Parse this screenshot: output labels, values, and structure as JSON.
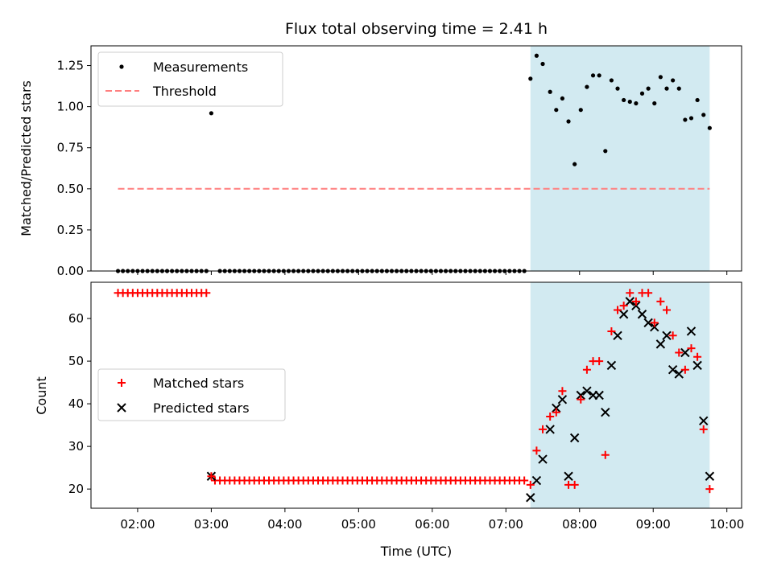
{
  "chart_data": [
    {
      "type": "scatter",
      "title": "Flux total observing time = 2.41 h",
      "xlabel": "",
      "ylabel": "Matched/Predicted stars",
      "xlim": [
        "01:22",
        "10:12"
      ],
      "ylim": [
        0,
        1.37
      ],
      "yticks": [
        0.0,
        0.25,
        0.5,
        0.75,
        1.0,
        1.25
      ],
      "ytick_labels": [
        "0.00",
        "0.25",
        "0.50",
        "0.75",
        "1.00",
        "1.25"
      ],
      "shaded_region": {
        "x_start": "07:20",
        "x_end": "09:46",
        "color": "#add8e6"
      },
      "legend": {
        "position": "top-left",
        "entries": [
          "Measurements",
          "Threshold"
        ]
      },
      "threshold": {
        "name": "Threshold",
        "y": 0.5,
        "x_start": "01:44",
        "x_end": "09:46",
        "color": "#ff7f7f",
        "style": "dashed"
      },
      "measurements": {
        "name": "Measurements",
        "color": "#000000",
        "zero_ranges": [
          {
            "start": "01:44",
            "end": "02:56",
            "step_min": 4
          },
          {
            "start": "03:07",
            "end": "07:16",
            "step_min": 4
          }
        ],
        "points": [
          {
            "x": "03:00",
            "y": 0.96
          },
          {
            "x": "07:20",
            "y": 1.17
          },
          {
            "x": "07:25",
            "y": 1.31
          },
          {
            "x": "07:30",
            "y": 1.26
          },
          {
            "x": "07:36",
            "y": 1.09
          },
          {
            "x": "07:41",
            "y": 0.98
          },
          {
            "x": "07:46",
            "y": 1.05
          },
          {
            "x": "07:51",
            "y": 0.91
          },
          {
            "x": "07:56",
            "y": 0.65
          },
          {
            "x": "08:01",
            "y": 0.98
          },
          {
            "x": "08:06",
            "y": 1.12
          },
          {
            "x": "08:11",
            "y": 1.19
          },
          {
            "x": "08:16",
            "y": 1.19
          },
          {
            "x": "08:21",
            "y": 0.73
          },
          {
            "x": "08:26",
            "y": 1.16
          },
          {
            "x": "08:31",
            "y": 1.11
          },
          {
            "x": "08:36",
            "y": 1.04
          },
          {
            "x": "08:41",
            "y": 1.03
          },
          {
            "x": "08:46",
            "y": 1.02
          },
          {
            "x": "08:51",
            "y": 1.08
          },
          {
            "x": "08:56",
            "y": 1.11
          },
          {
            "x": "09:01",
            "y": 1.02
          },
          {
            "x": "09:06",
            "y": 1.18
          },
          {
            "x": "09:11",
            "y": 1.11
          },
          {
            "x": "09:16",
            "y": 1.16
          },
          {
            "x": "09:21",
            "y": 1.11
          },
          {
            "x": "09:26",
            "y": 0.92
          },
          {
            "x": "09:31",
            "y": 0.93
          },
          {
            "x": "09:36",
            "y": 1.04
          },
          {
            "x": "09:41",
            "y": 0.95
          },
          {
            "x": "09:46",
            "y": 0.87
          }
        ]
      }
    },
    {
      "type": "scatter",
      "title": "",
      "xlabel": "Time (UTC)",
      "ylabel": "Count",
      "xlim": [
        "01:22",
        "10:12"
      ],
      "ylim": [
        15.5,
        68.5
      ],
      "yticks": [
        20,
        30,
        40,
        50,
        60
      ],
      "ytick_labels": [
        "20",
        "30",
        "40",
        "50",
        "60"
      ],
      "xticks": [
        "02:00",
        "03:00",
        "04:00",
        "05:00",
        "06:00",
        "07:00",
        "08:00",
        "09:00",
        "10:00"
      ],
      "shaded_region": {
        "x_start": "07:20",
        "x_end": "09:46",
        "color": "#add8e6"
      },
      "legend": {
        "position": "center-left",
        "entries": [
          "Matched stars",
          "Predicted stars"
        ]
      },
      "matched_flat_ranges": [
        {
          "start": "01:44",
          "end": "02:56",
          "step_min": 4,
          "y": 66
        },
        {
          "start": "03:03",
          "end": "07:16",
          "step_min": 4,
          "y": 22
        }
      ],
      "series": [
        {
          "name": "Matched stars",
          "color": "#ff0000",
          "marker": "plus",
          "points": [
            {
              "x": "03:00",
              "y": 23
            },
            {
              "x": "07:20",
              "y": 21
            },
            {
              "x": "07:25",
              "y": 29
            },
            {
              "x": "07:30",
              "y": 34
            },
            {
              "x": "07:36",
              "y": 37
            },
            {
              "x": "07:41",
              "y": 38
            },
            {
              "x": "07:46",
              "y": 43
            },
            {
              "x": "07:51",
              "y": 21
            },
            {
              "x": "07:56",
              "y": 21
            },
            {
              "x": "08:01",
              "y": 41
            },
            {
              "x": "08:06",
              "y": 48
            },
            {
              "x": "08:11",
              "y": 50
            },
            {
              "x": "08:16",
              "y": 50
            },
            {
              "x": "08:21",
              "y": 28
            },
            {
              "x": "08:26",
              "y": 57
            },
            {
              "x": "08:31",
              "y": 62
            },
            {
              "x": "08:36",
              "y": 63
            },
            {
              "x": "08:41",
              "y": 66
            },
            {
              "x": "08:46",
              "y": 64
            },
            {
              "x": "08:51",
              "y": 66
            },
            {
              "x": "08:56",
              "y": 66
            },
            {
              "x": "09:01",
              "y": 59
            },
            {
              "x": "09:06",
              "y": 64
            },
            {
              "x": "09:11",
              "y": 62
            },
            {
              "x": "09:16",
              "y": 56
            },
            {
              "x": "09:21",
              "y": 52
            },
            {
              "x": "09:26",
              "y": 48
            },
            {
              "x": "09:31",
              "y": 53
            },
            {
              "x": "09:36",
              "y": 51
            },
            {
              "x": "09:41",
              "y": 34
            },
            {
              "x": "09:46",
              "y": 20
            }
          ]
        },
        {
          "name": "Predicted stars",
          "color": "#000000",
          "marker": "x",
          "points": [
            {
              "x": "03:00",
              "y": 23
            },
            {
              "x": "07:20",
              "y": 18
            },
            {
              "x": "07:25",
              "y": 22
            },
            {
              "x": "07:30",
              "y": 27
            },
            {
              "x": "07:36",
              "y": 34
            },
            {
              "x": "07:41",
              "y": 39
            },
            {
              "x": "07:46",
              "y": 41
            },
            {
              "x": "07:51",
              "y": 23
            },
            {
              "x": "07:56",
              "y": 32
            },
            {
              "x": "08:01",
              "y": 42
            },
            {
              "x": "08:06",
              "y": 43
            },
            {
              "x": "08:11",
              "y": 42
            },
            {
              "x": "08:16",
              "y": 42
            },
            {
              "x": "08:21",
              "y": 38
            },
            {
              "x": "08:26",
              "y": 49
            },
            {
              "x": "08:31",
              "y": 56
            },
            {
              "x": "08:36",
              "y": 61
            },
            {
              "x": "08:41",
              "y": 64
            },
            {
              "x": "08:46",
              "y": 63
            },
            {
              "x": "08:51",
              "y": 61
            },
            {
              "x": "08:56",
              "y": 59
            },
            {
              "x": "09:01",
              "y": 58
            },
            {
              "x": "09:06",
              "y": 54
            },
            {
              "x": "09:11",
              "y": 56
            },
            {
              "x": "09:16",
              "y": 48
            },
            {
              "x": "09:21",
              "y": 47
            },
            {
              "x": "09:26",
              "y": 52
            },
            {
              "x": "09:31",
              "y": 57
            },
            {
              "x": "09:36",
              "y": 49
            },
            {
              "x": "09:41",
              "y": 36
            },
            {
              "x": "09:46",
              "y": 23
            }
          ]
        }
      ]
    }
  ]
}
